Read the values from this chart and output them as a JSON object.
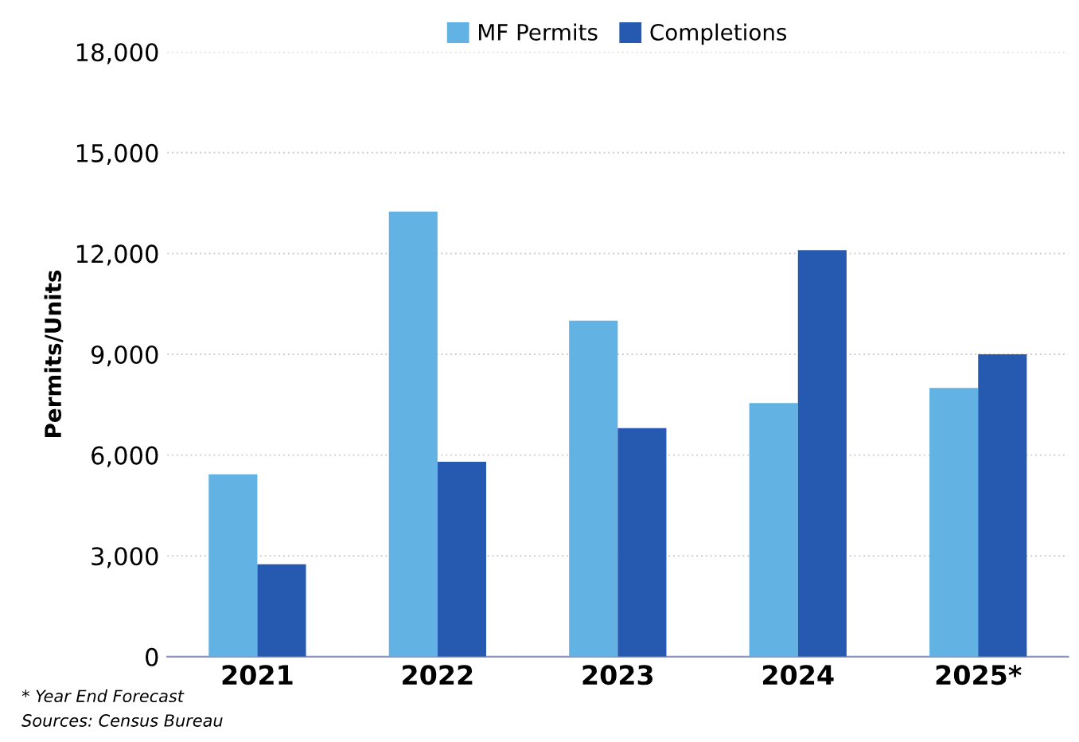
{
  "chart_data": {
    "type": "bar",
    "ylabel": "Permits/Units",
    "categories": [
      "2021",
      "2022",
      "2023",
      "2024",
      "2025*"
    ],
    "series": [
      {
        "name": "MF Permits",
        "color": "#62b3e4",
        "values": [
          5430,
          13250,
          10000,
          7550,
          8000
        ]
      },
      {
        "name": "Completions",
        "color": "#2659b0",
        "values": [
          2750,
          5800,
          6800,
          12100,
          9000
        ]
      }
    ],
    "ylim": [
      0,
      18000
    ],
    "yticks": [
      {
        "value": 0,
        "label": "0"
      },
      {
        "value": 3000,
        "label": "3,000"
      },
      {
        "value": 6000,
        "label": "6,000"
      },
      {
        "value": 9000,
        "label": "9,000"
      },
      {
        "value": 12000,
        "label": "12,000"
      },
      {
        "value": 15000,
        "label": "15,000"
      },
      {
        "value": 18000,
        "label": "18,000"
      }
    ],
    "grid": "y",
    "legend": "top",
    "annotations": [
      "* Year End Forecast",
      "Sources: Census Bureau"
    ]
  }
}
